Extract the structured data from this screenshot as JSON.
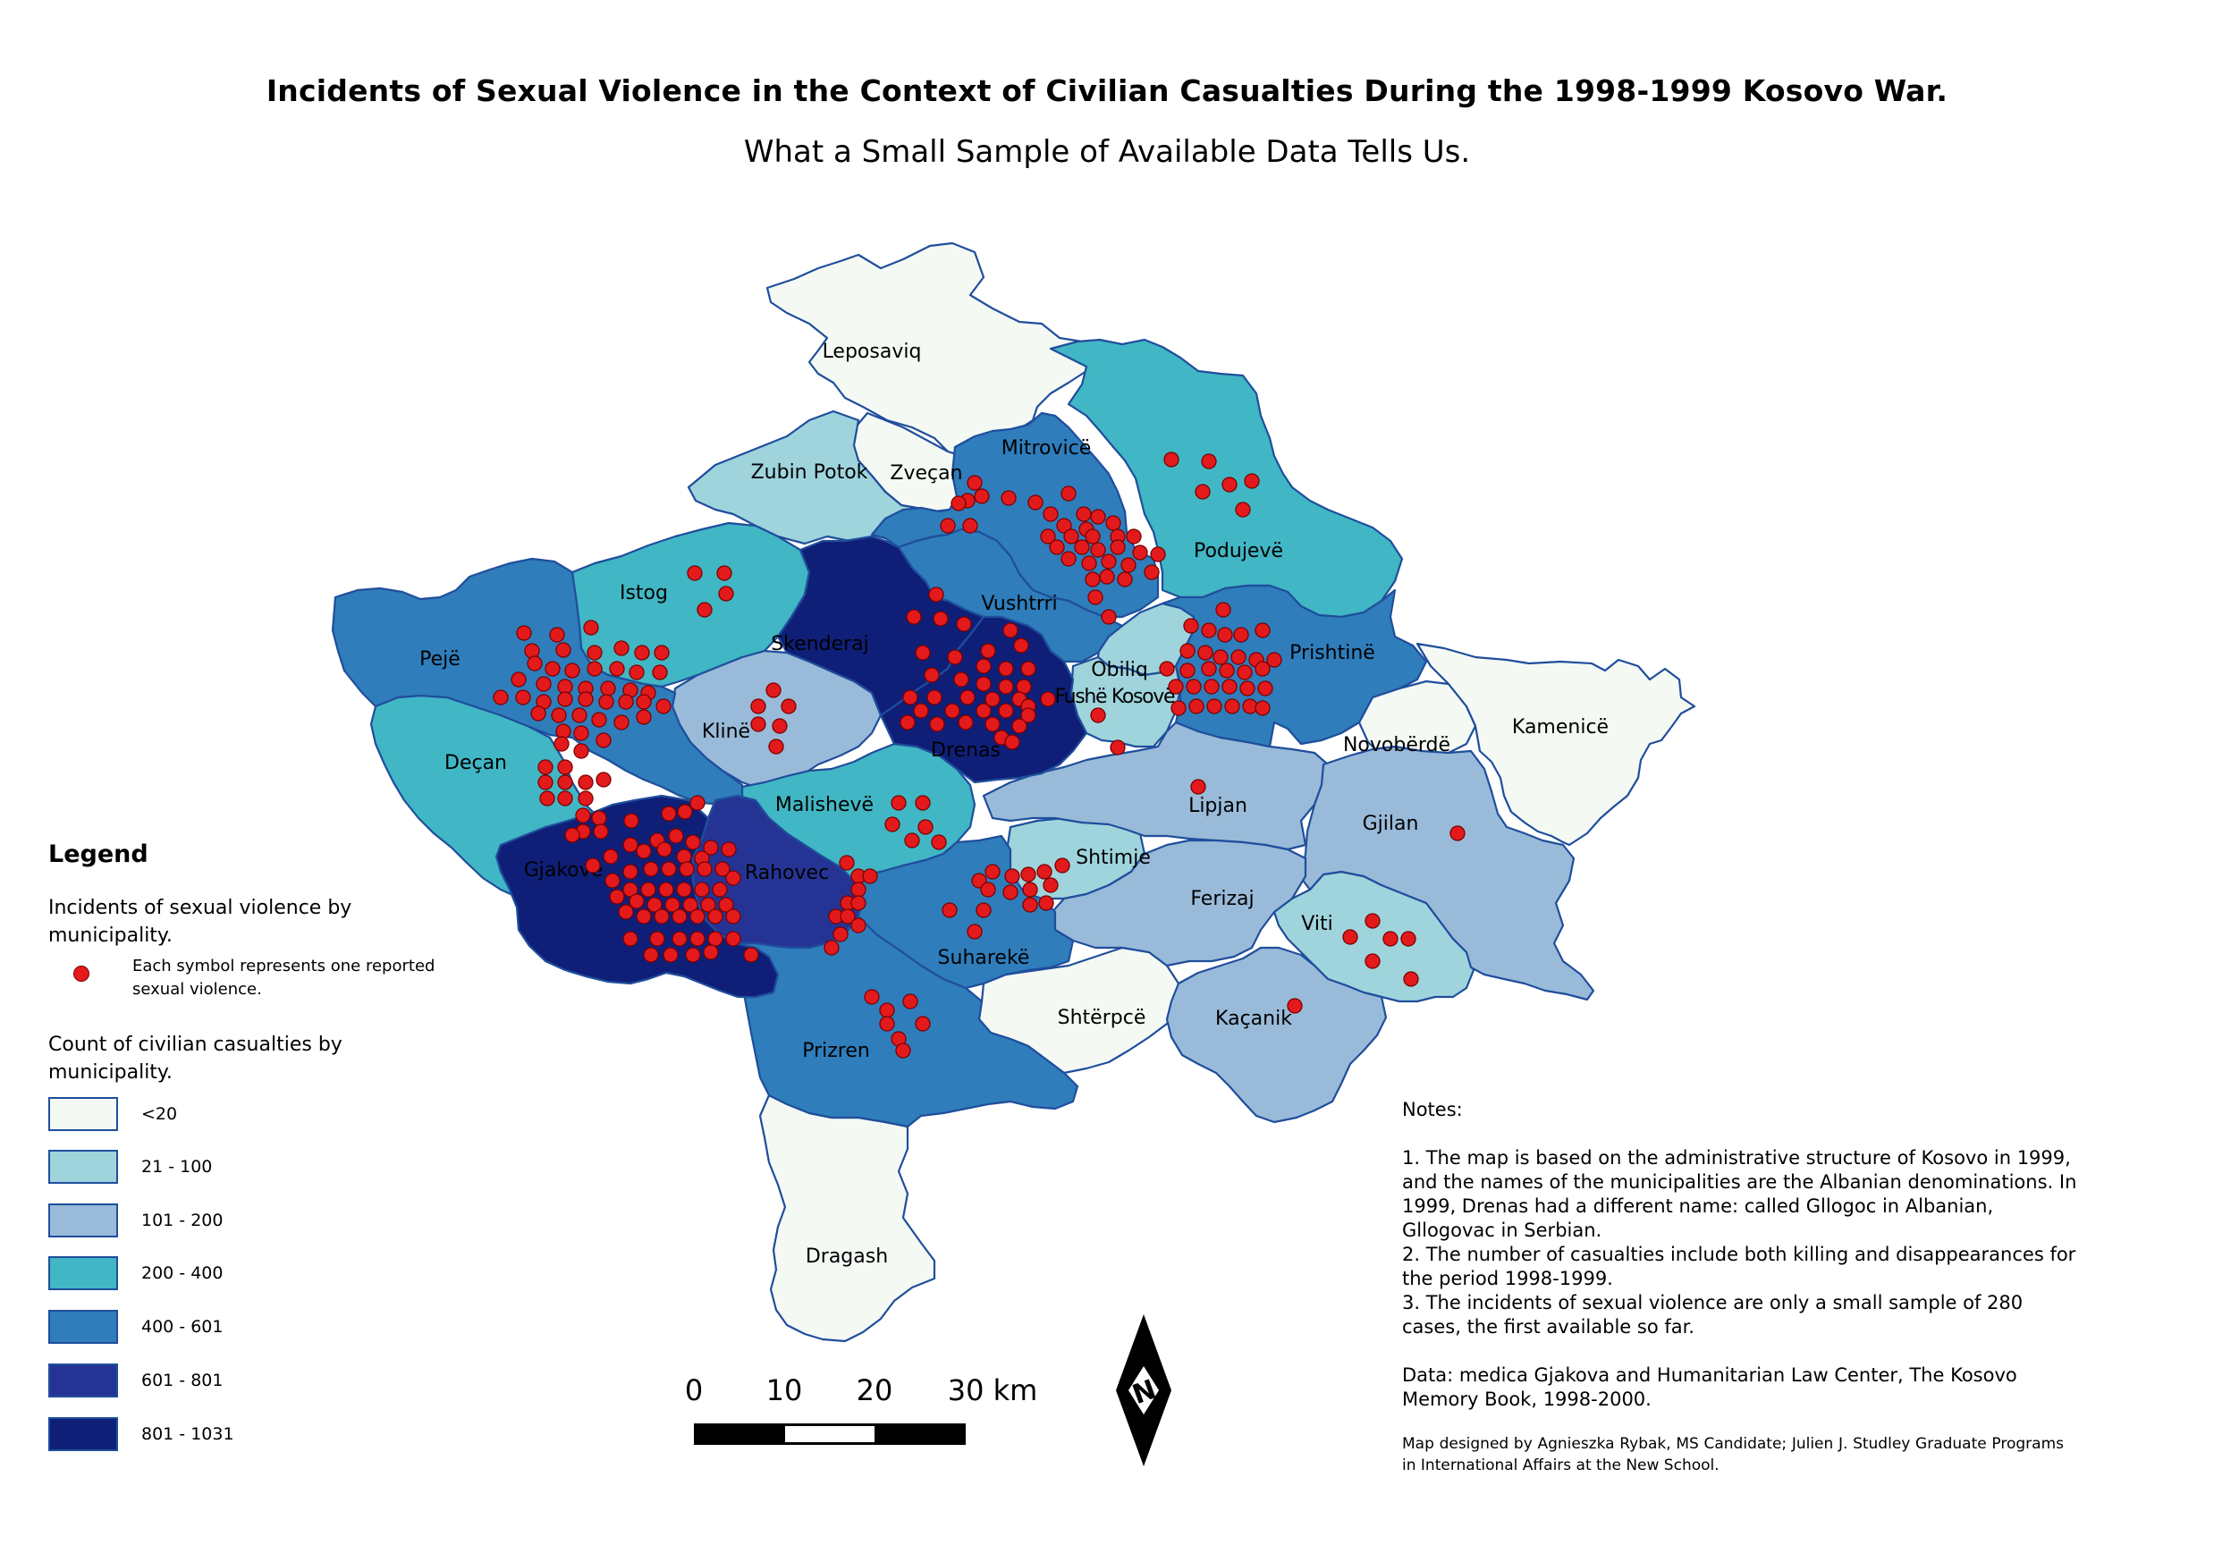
{
  "title": "Incidents of Sexual Violence in the Context of Civilian Casualties During the 1998-1999 Kosovo War.",
  "subtitle": "What a Small Sample of Available Data Tells Us.",
  "colors": {
    "lt20": "#f4f9f4",
    "c21_100": "#9fd4dc",
    "c101_200": "#99bbd9",
    "c200_400": "#41b6c4",
    "c400_601": "#2f7dbb",
    "c601_801": "#253494",
    "c801_1031": "#0f1f78",
    "dot": "#e31a1c"
  },
  "municipalities": [
    {
      "name": "Leposaviq",
      "class": "<20"
    },
    {
      "name": "Zubin Potok",
      "class": "21 - 100"
    },
    {
      "name": "Zveçan",
      "class": "<20"
    },
    {
      "name": "Mitrovicë",
      "class": "400 - 601"
    },
    {
      "name": "Podujevë",
      "class": "200 - 400"
    },
    {
      "name": "Istog",
      "class": "200 - 400"
    },
    {
      "name": "Skenderaj",
      "class": "801 - 1031"
    },
    {
      "name": "Vushtrri",
      "class": "400 - 601"
    },
    {
      "name": "Pejë",
      "class": "400 - 601"
    },
    {
      "name": "Klinë",
      "class": "101 - 200"
    },
    {
      "name": "Obiliq",
      "class": "21 - 100"
    },
    {
      "name": "Prishtinë",
      "class": "400 - 601"
    },
    {
      "name": "Fushë Kosovë",
      "class": "21 - 100"
    },
    {
      "name": "Drenas",
      "class": "801 - 1031"
    },
    {
      "name": "Novobërdë",
      "class": "<20"
    },
    {
      "name": "Kamenicë",
      "class": "<20"
    },
    {
      "name": "Deçan",
      "class": "200 - 400"
    },
    {
      "name": "Malishevë",
      "class": "200 - 400"
    },
    {
      "name": "Lipjan",
      "class": "101 - 200"
    },
    {
      "name": "Gjilan",
      "class": "101 - 200"
    },
    {
      "name": "Gjakovë",
      "class": "801 - 1031"
    },
    {
      "name": "Rahovec",
      "class": "601 - 801"
    },
    {
      "name": "Shtimje",
      "class": "21 - 100"
    },
    {
      "name": "Ferizaj",
      "class": "101 - 200"
    },
    {
      "name": "Viti",
      "class": "21 - 100"
    },
    {
      "name": "Suharekë",
      "class": "400 - 601"
    },
    {
      "name": "Shtërpcë",
      "class": "<20"
    },
    {
      "name": "Kaçanik",
      "class": "101 - 200"
    },
    {
      "name": "Prizren",
      "class": "400 - 601"
    },
    {
      "name": "Dragash",
      "class": "<20"
    }
  ],
  "legend": {
    "title": "Legend",
    "sv_title": "Incidents of sexual violence by municipality.",
    "sv_note": "Each symbol represents one reported sexual violence.",
    "cc_title": "Count of civilian casualties by municipality.",
    "classes": [
      {
        "label": "<20",
        "color": "#f4f9f4"
      },
      {
        "label": "21 - 100",
        "color": "#9fd4dc"
      },
      {
        "label": "101 - 200",
        "color": "#99bbd9"
      },
      {
        "label": "200 - 400",
        "color": "#41b6c4"
      },
      {
        "label": "400 - 601",
        "color": "#2f7dbb"
      },
      {
        "label": "601 - 801",
        "color": "#253494"
      },
      {
        "label": "801 - 1031",
        "color": "#0f1f78"
      }
    ]
  },
  "scale": {
    "ticks": [
      "0",
      "10",
      "20",
      "30 km"
    ]
  },
  "north_label": "N",
  "notes": {
    "heading": "Notes:",
    "items": [
      "1. The map is based on the administrative structure of Kosovo in 1999, and the names of the municipalities are the Albanian denominations. In 1999, Drenas had a different name: called Gllogoc in Albanian, Gllogovac in Serbian.",
      "2. The number of casualties include both killing and disappearances for the period 1998-1999.",
      "3. The incidents of sexual violence are only a small sample of 280 cases, the first available so far."
    ],
    "data": "Data: medica Gjakova and Humanitarian Law Center, The Kosovo Memory Book, 1998-2000."
  },
  "credit": "Map designed by Agnieszka Rybak, MS Candidate; Julien J. Studley Graduate Programs in International Affairs at the New School."
}
